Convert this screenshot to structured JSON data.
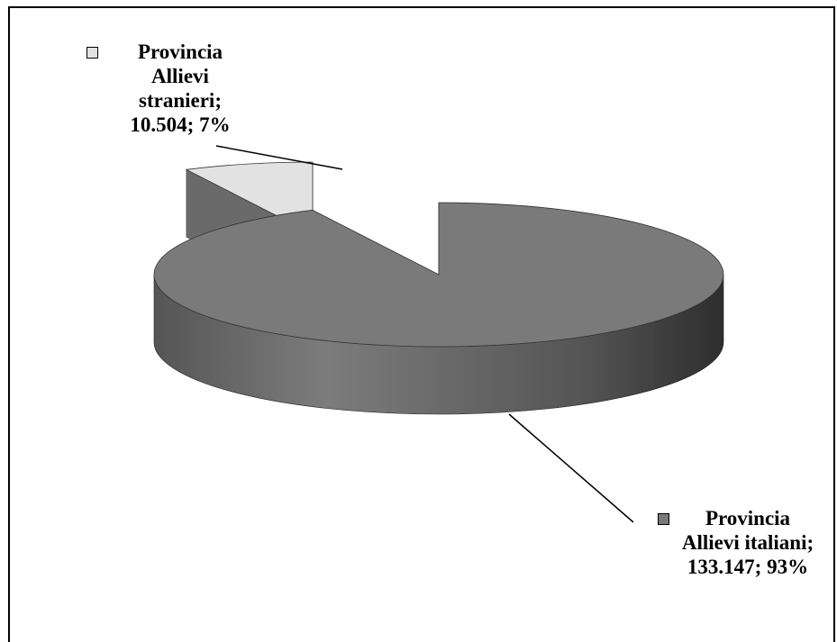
{
  "chart_data": {
    "type": "pie3d",
    "value_labels": [
      "Provincia\nAllievi\nstranieri;\n10.504; 7%",
      "Provincia\nAllievi italiani;\n133.147; 93%"
    ],
    "values": [
      10504,
      133147
    ],
    "colors": [
      "#e2e2e2",
      "#7a7a7a"
    ],
    "explode": [
      true,
      false
    ]
  }
}
